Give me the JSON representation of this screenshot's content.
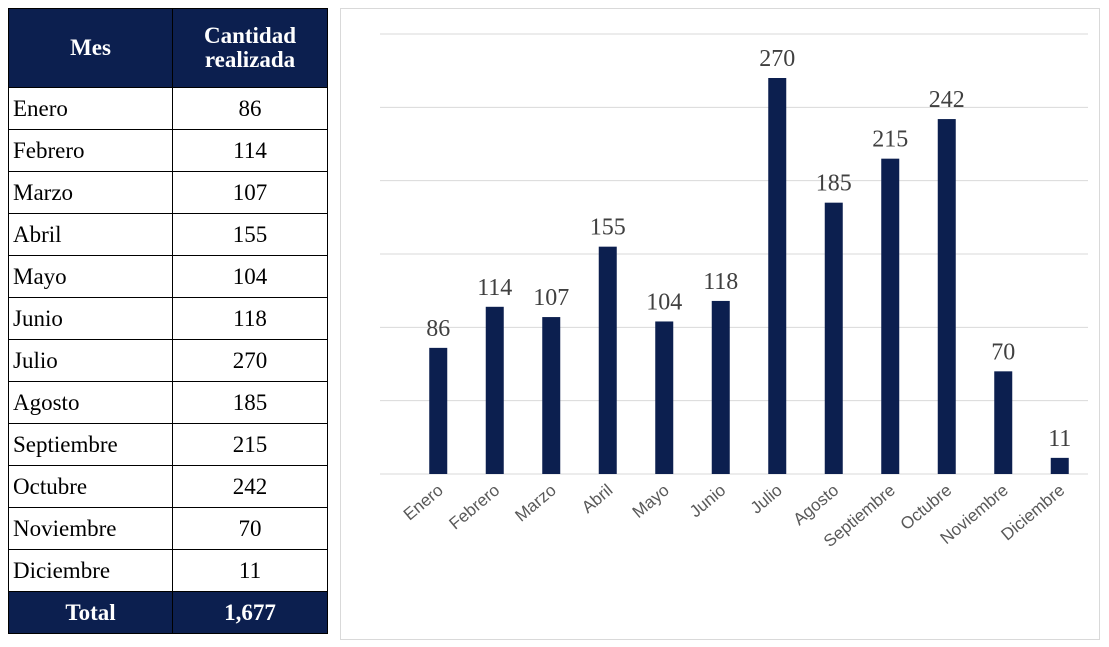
{
  "table": {
    "header": [
      "Mes",
      "Cantidad realizada"
    ],
    "rows": [
      [
        "Enero",
        "86"
      ],
      [
        "Febrero",
        "114"
      ],
      [
        "Marzo",
        "107"
      ],
      [
        "Abril",
        "155"
      ],
      [
        "Mayo",
        "104"
      ],
      [
        "Junio",
        "118"
      ],
      [
        "Julio",
        "270"
      ],
      [
        "Agosto",
        "185"
      ],
      [
        "Septiembre",
        "215"
      ],
      [
        "Octubre",
        "242"
      ],
      [
        "Noviembre",
        "70"
      ],
      [
        "Diciembre",
        "11"
      ]
    ],
    "total": [
      "Total",
      "1,677"
    ]
  },
  "chart_data": {
    "type": "bar",
    "categories": [
      "Enero",
      "Febrero",
      "Marzo",
      "Abril",
      "Mayo",
      "Junio",
      "Julio",
      "Agosto",
      "Septiembre",
      "Octubre",
      "Noviembre",
      "Diciembre"
    ],
    "values": [
      86,
      114,
      107,
      155,
      104,
      118,
      270,
      185,
      215,
      242,
      70,
      11
    ],
    "color": "#0c1f4f",
    "ylim": [
      0,
      300
    ],
    "yticks": [
      0,
      50,
      100,
      150,
      200,
      250,
      300
    ],
    "grid": true
  }
}
